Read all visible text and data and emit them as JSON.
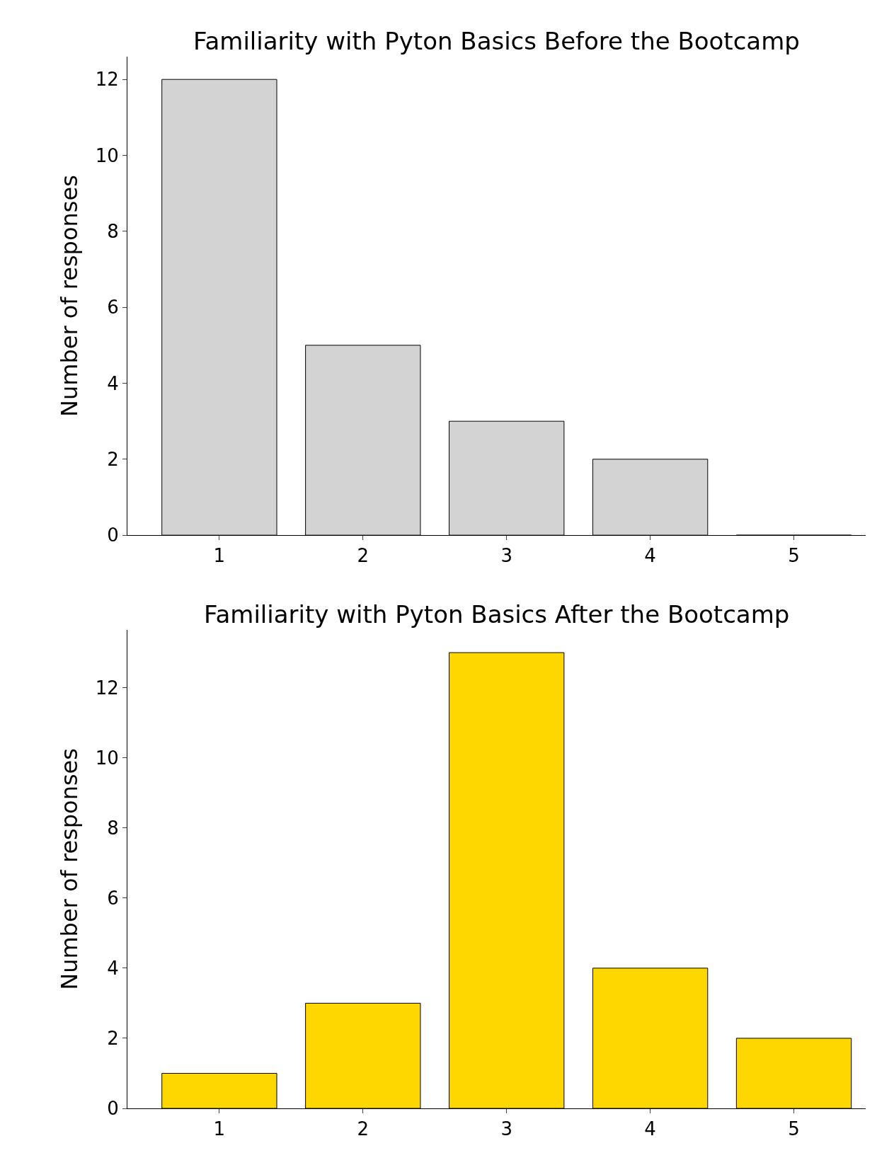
{
  "chart_data": [
    {
      "type": "bar",
      "title": "Familiarity with Pyton Basics Before the Bootcamp",
      "ylabel": "Number of responses",
      "categories": [
        "1",
        "2",
        "3",
        "4",
        "5"
      ],
      "values": [
        12,
        5,
        3,
        2,
        0
      ],
      "color": "#d3d3d3",
      "ylim": [
        0,
        12.6
      ],
      "yticks": [
        0,
        2,
        4,
        6,
        8,
        10,
        12
      ]
    },
    {
      "type": "bar",
      "title": "Familiarity with Pyton Basics After the Bootcamp",
      "ylabel": "Number of responses",
      "categories": [
        "1",
        "2",
        "3",
        "4",
        "5"
      ],
      "values": [
        1,
        3,
        13,
        4,
        2
      ],
      "color": "#ffd700",
      "ylim": [
        0,
        13.65
      ],
      "yticks": [
        0,
        2,
        4,
        6,
        8,
        10,
        12
      ]
    }
  ]
}
